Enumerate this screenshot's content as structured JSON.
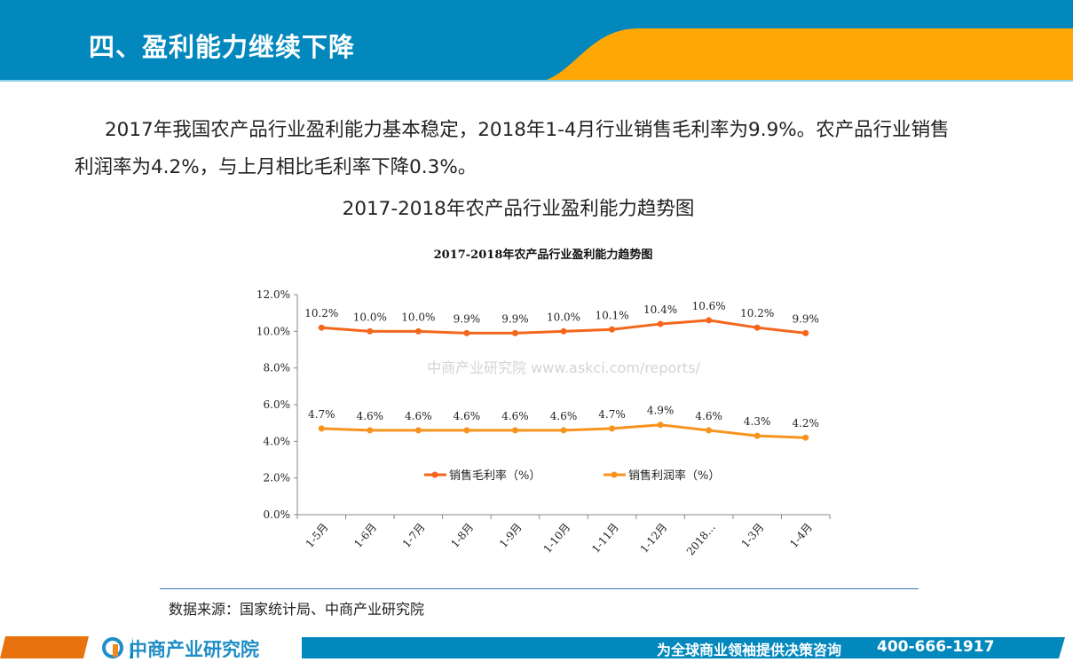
{
  "header": {
    "title": "四、盈利能力继续下降",
    "colors": {
      "blue": "#0288bd",
      "orange": "#ffa705"
    }
  },
  "body": {
    "paragraph": "2017年我国农产品行业盈利能力基本稳定，2018年1-4月行业销售毛利率为9.9%。农产品行业销售利润率为4.2%，与上月相比毛利率下降0.3%。",
    "subtitle": "2017-2018年农产品行业盈利能力趋势图"
  },
  "chart_data": {
    "type": "line",
    "title": "2017-2018年农产品行业盈利能力趋势图",
    "categories": [
      "1-5月",
      "1-6月",
      "1-7月",
      "1-8月",
      "1-9月",
      "1-10月",
      "1-11月",
      "1-12月",
      "2018…",
      "1-3月",
      "1-4月"
    ],
    "yticks": [
      "0.0%",
      "2.0%",
      "4.0%",
      "6.0%",
      "8.0%",
      "10.0%",
      "12.0%"
    ],
    "ylim": [
      0,
      12
    ],
    "grid": false,
    "legend": "inside-bottom-center",
    "series": [
      {
        "name": "销售毛利率（%）",
        "color": "#f4661b",
        "values": [
          10.2,
          10.0,
          10.0,
          9.9,
          9.9,
          10.0,
          10.1,
          10.4,
          10.6,
          10.2,
          9.9
        ],
        "labels": [
          "10.2%",
          "10.0%",
          "10.0%",
          "9.9%",
          "9.9%",
          "10.0%",
          "10.1%",
          "10.4%",
          "10.6%",
          "10.2%",
          "9.9%"
        ]
      },
      {
        "name": "销售利润率（%）",
        "color": "#f7931e",
        "values": [
          4.7,
          4.6,
          4.6,
          4.6,
          4.6,
          4.6,
          4.7,
          4.9,
          4.6,
          4.3,
          4.2
        ],
        "labels": [
          "4.7%",
          "4.6%",
          "4.6%",
          "4.6%",
          "4.6%",
          "4.6%",
          "4.7%",
          "4.9%",
          "4.6%",
          "4.3%",
          "4.2%"
        ]
      }
    ],
    "watermark": "中商产业研究院 www.askci.com/reports/"
  },
  "source": "数据来源：国家统计局、中商产业研究院",
  "footer": {
    "logo": "中商产业研究院",
    "slogan": "为全球商业领袖提供决策咨询",
    "phone": "400-666-1917"
  }
}
